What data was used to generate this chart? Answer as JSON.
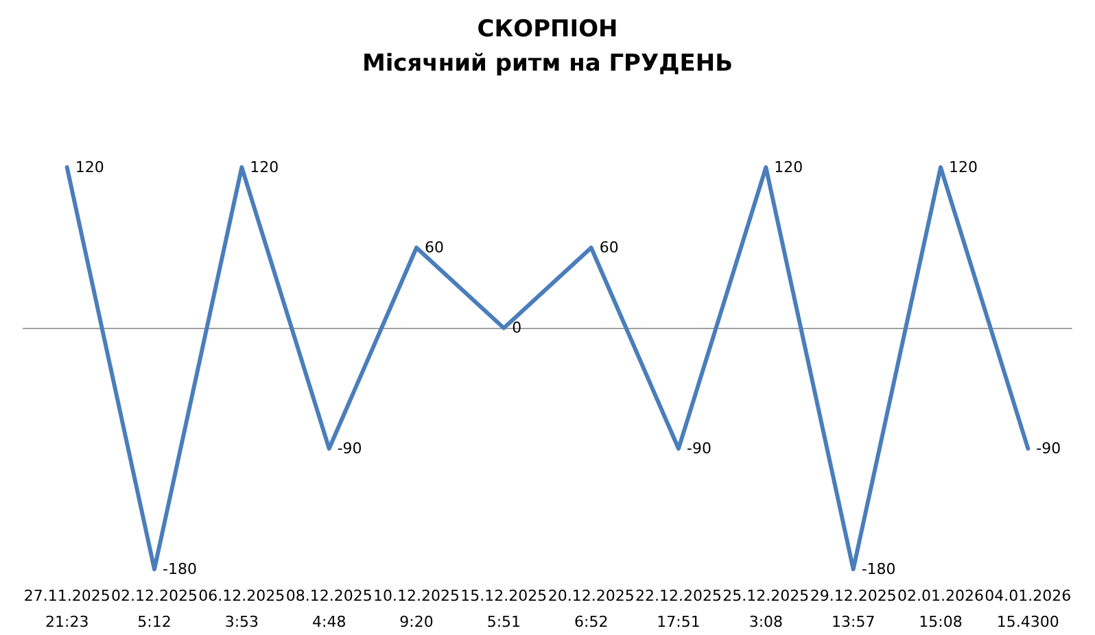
{
  "chart_data": {
    "type": "line",
    "title": "СКОРПІОН",
    "subtitle": "Місячний ритм на ГРУДЕНЬ",
    "categories": [
      "27.11.2025 21:23",
      "02.12.2025 5:12",
      "06.12.2025 3:53",
      "08.12.2025 4:48",
      "10.12.2025 9:20",
      "15.12.2025 5:51",
      "20.12.2025 6:52",
      "22.12.2025 17:51",
      "25.12.2025 3:08",
      "29.12.2025 13:57",
      "02.01.2026 15:08",
      "04.01.2026 15.4300"
    ],
    "series": [
      {
        "color": "#4a7ebb",
        "values": [
          120,
          -180,
          120,
          -90,
          60,
          0,
          60,
          -90,
          120,
          -180,
          120,
          -90
        ]
      }
    ],
    "data_labels": true,
    "marker": "none",
    "line_style": "solid",
    "grid": false
  }
}
